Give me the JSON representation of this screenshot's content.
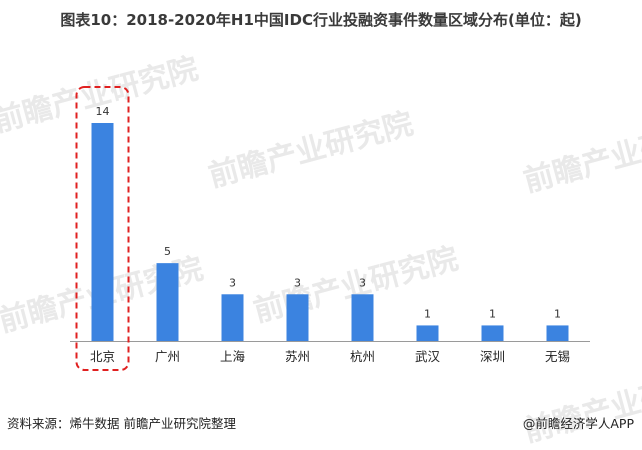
{
  "title": "图表10：2018-2020年H1中国IDC行业投融资事件数量区域分布(单位：起)",
  "watermark": "前瞻产业研究院",
  "source": "资料来源：烯牛数据 前瞻产业研究院整理",
  "app_credit": "@前瞻经济学人APP",
  "colors": {
    "bar": "#3b83e0",
    "highlight_box": "#e02020",
    "axis": "#9a9a9a"
  },
  "chart_data": {
    "type": "bar",
    "title": "图表10：2018-2020年H1中国IDC行业投融资事件数量区域分布(单位：起)",
    "categories": [
      "北京",
      "广州",
      "上海",
      "苏州",
      "杭州",
      "武汉",
      "深圳",
      "无锡"
    ],
    "values": [
      14,
      5,
      3,
      3,
      3,
      1,
      1,
      1
    ],
    "ylim": [
      0,
      14
    ],
    "highlighted_category": "北京",
    "data_labels": true,
    "grid": false
  }
}
